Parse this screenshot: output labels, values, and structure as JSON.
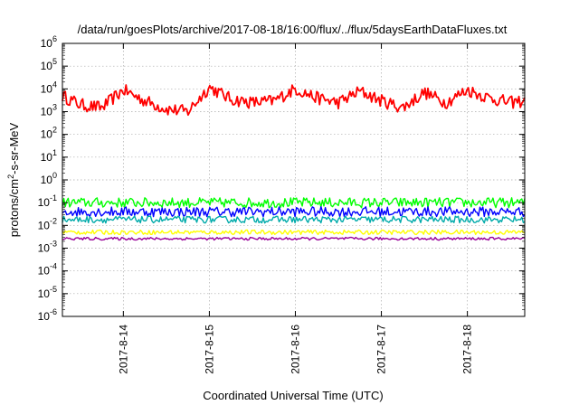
{
  "chart_data": {
    "type": "line",
    "title": "/data/run/goesPlots/archive/2017-08-18/16:00/flux/../flux/5daysEarthDataFluxes.txt",
    "xlabel": "Coordinated Universal Time (UTC)",
    "ylabel_parts": {
      "base": "protons/cm",
      "sup": "2",
      "rest": "-s-sr-MeV"
    },
    "y_scale": "log",
    "ylim": [
      1e-06,
      1000000.0
    ],
    "x_range": [
      "2017-08-13 07:00",
      "2017-08-18 16:00"
    ],
    "x_ticks": [
      "2017-8-14",
      "2017-8-15",
      "2017-8-16",
      "2017-8-17",
      "2017-8-18"
    ],
    "y_ticks": [
      {
        "base": "10",
        "exp": "-6"
      },
      {
        "base": "10",
        "exp": "-5"
      },
      {
        "base": "10",
        "exp": "-4"
      },
      {
        "base": "10",
        "exp": "-3"
      },
      {
        "base": "10",
        "exp": "-2"
      },
      {
        "base": "10",
        "exp": "-1"
      },
      {
        "base": "10",
        "exp": "0"
      },
      {
        "base": "10",
        "exp": "1"
      },
      {
        "base": "10",
        "exp": "2"
      },
      {
        "base": "10",
        "exp": "3"
      },
      {
        "base": "10",
        "exp": "4"
      },
      {
        "base": "10",
        "exp": "5"
      },
      {
        "base": "10",
        "exp": "6"
      }
    ],
    "grid": true,
    "series": [
      {
        "color": "#ff0000",
        "noise": 0.28,
        "x": [
          "2017-08-13 07:00",
          "2017-08-13 12:00",
          "2017-08-13 18:00",
          "2017-08-14 00:00",
          "2017-08-14 06:00",
          "2017-08-14 12:00",
          "2017-08-14 18:00",
          "2017-08-15 00:00",
          "2017-08-15 06:00",
          "2017-08-15 12:00",
          "2017-08-15 18:00",
          "2017-08-16 00:00",
          "2017-08-16 06:00",
          "2017-08-16 12:00",
          "2017-08-16 18:00",
          "2017-08-17 00:00",
          "2017-08-17 06:00",
          "2017-08-17 12:00",
          "2017-08-17 18:00",
          "2017-08-18 00:00",
          "2017-08-18 06:00",
          "2017-08-18 12:00",
          "2017-08-18 16:00"
        ],
        "y": [
          5000,
          2000,
          1500,
          9000,
          3000,
          1300,
          1000,
          12000,
          3500,
          2500,
          3000,
          10000,
          4000,
          2500,
          8000,
          3000,
          1500,
          7000,
          2500,
          9000,
          4000,
          2500,
          3000
        ]
      },
      {
        "color": "#00ff00",
        "noise": 0.22,
        "x": [
          "2017-08-13 07:00",
          "2017-08-18 16:00"
        ],
        "y": [
          0.1,
          0.1
        ]
      },
      {
        "color": "#0000ff",
        "noise": 0.22,
        "x": [
          "2017-08-13 07:00",
          "2017-08-18 16:00"
        ],
        "y": [
          0.04,
          0.04
        ]
      },
      {
        "color": "#00aaaa",
        "noise": 0.15,
        "x": [
          "2017-08-13 07:00",
          "2017-08-18 16:00"
        ],
        "y": [
          0.018,
          0.018
        ]
      },
      {
        "color": "#ffff00",
        "noise": 0.1,
        "x": [
          "2017-08-13 07:00",
          "2017-08-18 16:00"
        ],
        "y": [
          0.005,
          0.005
        ]
      },
      {
        "color": "#990099",
        "noise": 0.06,
        "x": [
          "2017-08-13 07:00",
          "2017-08-18 16:00"
        ],
        "y": [
          0.0026,
          0.0026
        ]
      }
    ]
  }
}
